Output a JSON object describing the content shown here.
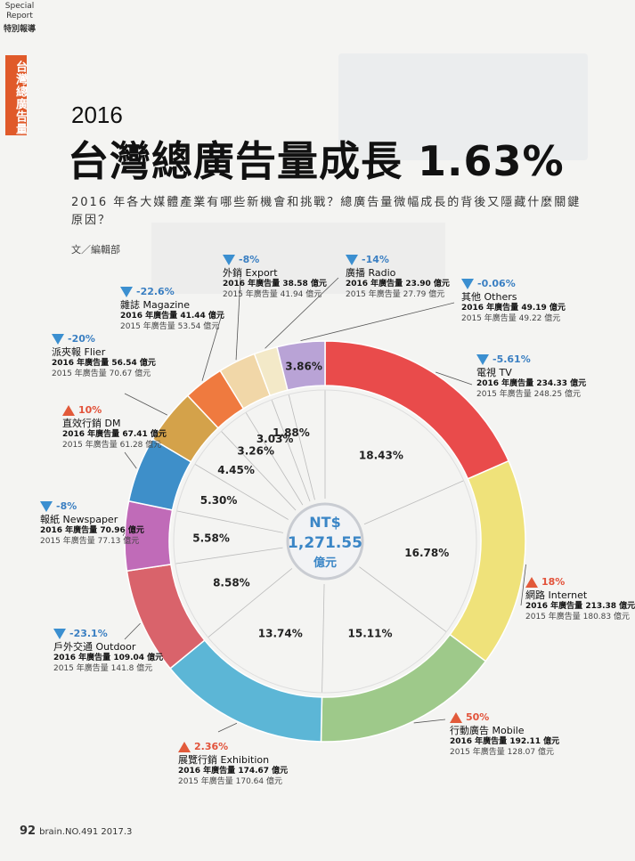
{
  "section": {
    "en": "Special Report",
    "zh": "特別報導",
    "tab": "台灣總廣告量"
  },
  "header": {
    "year": "2016",
    "title": "台灣總廣告量成長 1.63%",
    "subtitle": "2016 年各大媒體產業有哪些新機會和挑戰？總廣告量微幅成長的背後又隱藏什麼關鍵原因？",
    "author": "文／編輯部"
  },
  "footer": {
    "page": "92",
    "issue": "brain.NO.491 2017.3"
  },
  "center": {
    "currency": "NT$",
    "total": "1,271.55",
    "unit": "億元"
  },
  "chart_data": {
    "type": "pie",
    "total_label": "NT$ 1,271.55 億元",
    "slices": [
      {
        "name": "電視 TV",
        "pct": 18.43,
        "pct_label": "18.43%",
        "v2016": "2016 年廣告量 234.33 億元",
        "v2015": "2015 年廣告量 248.25 億元",
        "change": "-5.61%",
        "dir": "down",
        "color": "#e94b4b"
      },
      {
        "name": "網路 Internet",
        "pct": 16.78,
        "pct_label": "16.78%",
        "v2016": "2016 年廣告量 213.38 億元",
        "v2015": "2015 年廣告量 180.83 億元",
        "change": "18%",
        "dir": "up",
        "color": "#efe27a"
      },
      {
        "name": "行動廣告 Mobile",
        "pct": 15.11,
        "pct_label": "15.11%",
        "v2016": "2016 年廣告量 192.11 億元",
        "v2015": "2015 年廣告量 128.07 億元",
        "change": "50%",
        "dir": "up",
        "color": "#9ec98a"
      },
      {
        "name": "展覽行銷 Exhibition",
        "pct": 13.74,
        "pct_label": "13.74%",
        "v2016": "2016 年廣告量 174.67 億元",
        "v2015": "2015 年廣告量 170.64 億元",
        "change": "2.36%",
        "dir": "up",
        "color": "#5cb6d6"
      },
      {
        "name": "戶外交通 Outdoor",
        "pct": 8.58,
        "pct_label": "8.58%",
        "v2016": "2016 年廣告量 109.04 億元",
        "v2015": "2015 年廣告量 141.8 億元",
        "change": "-23.1%",
        "dir": "down",
        "color": "#d9636b"
      },
      {
        "name": "報紙 Newspaper",
        "pct": 5.58,
        "pct_label": "5.58%",
        "v2016": "2016 年廣告量 70.96 億元",
        "v2015": "2015 年廣告量 77.13 億元",
        "change": "-8%",
        "dir": "down",
        "color": "#c06bb8"
      },
      {
        "name": "直效行銷 DM",
        "pct": 5.3,
        "pct_label": "5.30%",
        "v2016": "2016 年廣告量 67.41 億元",
        "v2015": "2015 年廣告量 61.28 億元",
        "change": "10%",
        "dir": "up",
        "color": "#3e8fc9"
      },
      {
        "name": "派夾報 Flier",
        "pct": 4.45,
        "pct_label": "4.45%",
        "v2016": "2016 年廣告量 56.54 億元",
        "v2015": "2015 年廣告量 70.67 億元",
        "change": "-20%",
        "dir": "down",
        "color": "#d4a24a"
      },
      {
        "name": "雜誌 Magazine",
        "pct": 3.26,
        "pct_label": "3.26%",
        "v2016": "2016 年廣告量 41.44 億元",
        "v2015": "2015 年廣告量 53.54 億元",
        "change": "-22.6%",
        "dir": "down",
        "color": "#ef7a3f"
      },
      {
        "name": "外銷 Export",
        "pct": 3.03,
        "pct_label": "3.03%",
        "v2016": "2016 年廣告量 38.58 億元",
        "v2015": "2015 年廣告量 41.94 億元",
        "change": "-8%",
        "dir": "down",
        "color": "#f1d7a8"
      },
      {
        "name": "廣播 Radio",
        "pct": 1.88,
        "pct_label": "1.88%",
        "v2016": "2016 年廣告量 23.90 億元",
        "v2015": "2015 年廣告量 27.79 億元",
        "change": "-14%",
        "dir": "down",
        "color": "#f3e9c8"
      },
      {
        "name": "其他 Others",
        "pct": 3.86,
        "pct_label": "3.86%",
        "v2016": "2016 年廣告量 49.19 億元",
        "v2015": "2015 年廣告量 49.22 億元",
        "change": "-0.06%",
        "dir": "down",
        "color": "#b9a3d6"
      }
    ]
  }
}
